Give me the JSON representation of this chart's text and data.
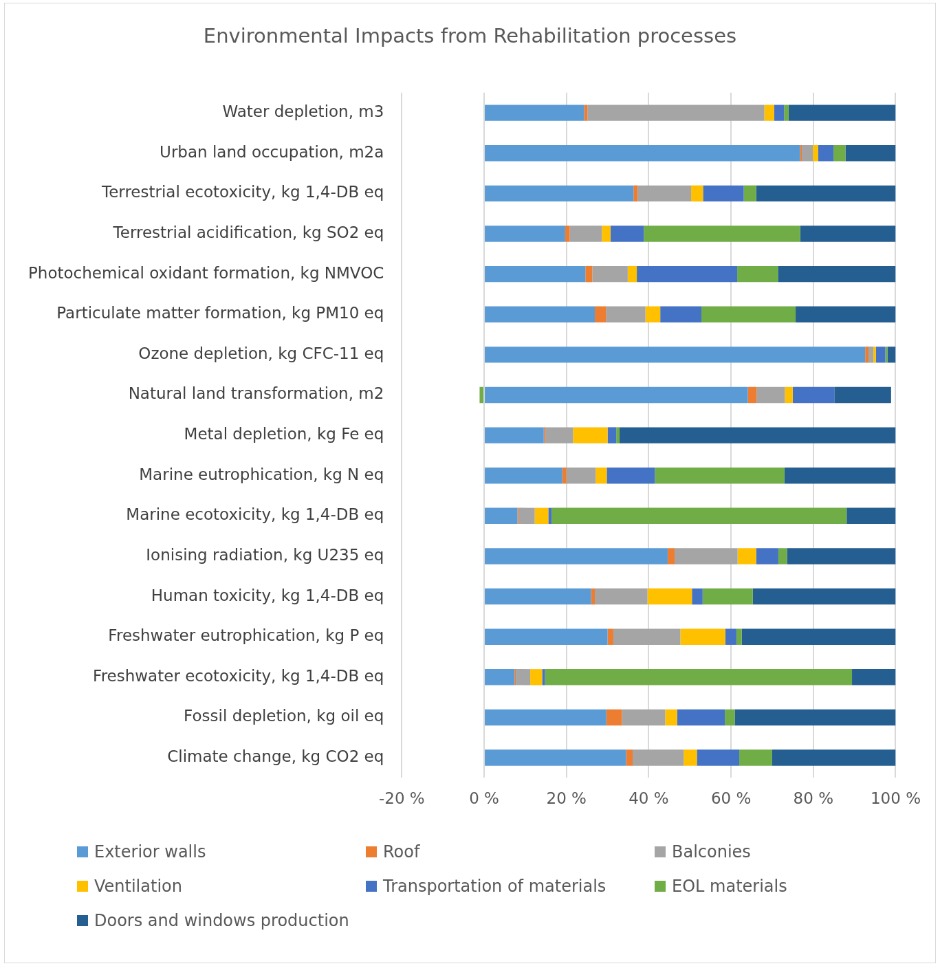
{
  "chart_data": {
    "type": "bar",
    "orientation": "horizontal",
    "stacked": true,
    "title": "Environmental Impacts from Rehabilitation processes",
    "categories": [
      "Water depletion, m3",
      "Urban land occupation, m2a",
      "Terrestrial ecotoxicity, kg 1,4-DB eq",
      "Terrestrial acidification, kg SO2 eq",
      "Photochemical oxidant formation, kg NMVOC",
      "Particulate matter formation, kg PM10 eq",
      "Ozone depletion, kg CFC-11 eq",
      "Natural land transformation, m2",
      "Metal depletion, kg Fe eq",
      "Marine eutrophication, kg N eq",
      "Marine ecotoxicity, kg 1,4-DB eq",
      "Ionising radiation, kg U235 eq",
      "Human toxicity, kg 1,4-DB eq",
      "Freshwater eutrophication, kg P eq",
      "Freshwater ecotoxicity, kg 1,4-DB eq",
      "Fossil depletion, kg oil eq",
      "Climate change, kg CO2 eq"
    ],
    "series": [
      {
        "name": "Exterior walls",
        "color": "#5b9bd5",
        "values": [
          24.3,
          76.8,
          36.3,
          19.7,
          24.6,
          26.9,
          92.6,
          64.1,
          14.5,
          19.0,
          8.1,
          44.6,
          26.0,
          30.0,
          7.4,
          29.7,
          34.5
        ]
      },
      {
        "name": "Roof",
        "color": "#ed7d31",
        "values": [
          0.8,
          0.4,
          1.0,
          1.1,
          1.7,
          2.7,
          0.8,
          2.1,
          0.3,
          1.0,
          0.3,
          1.7,
          0.9,
          1.4,
          0.3,
          3.8,
          1.6
        ]
      },
      {
        "name": "Balconies",
        "color": "#a5a5a5",
        "values": [
          43.0,
          2.7,
          13.0,
          7.8,
          8.6,
          9.6,
          1.2,
          6.9,
          6.8,
          7.1,
          3.9,
          15.3,
          12.8,
          16.3,
          3.5,
          10.5,
          12.4
        ]
      },
      {
        "name": "Ventilation",
        "color": "#ffc000",
        "values": [
          2.4,
          1.3,
          2.9,
          2.1,
          2.2,
          3.6,
          0.6,
          1.9,
          8.4,
          2.7,
          3.3,
          4.5,
          10.8,
          10.9,
          2.9,
          2.9,
          3.2
        ]
      },
      {
        "name": "Transportation of materials",
        "color": "#4472c4",
        "values": [
          2.4,
          3.7,
          9.9,
          8.1,
          24.4,
          10.0,
          2.3,
          10.1,
          2.1,
          11.7,
          0.8,
          5.4,
          2.6,
          2.7,
          0.7,
          11.6,
          10.3
        ]
      },
      {
        "name": "EOL materials",
        "color": "#70ad47",
        "values": [
          1.1,
          2.9,
          3.0,
          38.0,
          9.9,
          22.9,
          0.5,
          -1.1,
          0.8,
          31.5,
          71.7,
          2.1,
          12.2,
          1.3,
          74.6,
          2.4,
          8.0
        ]
      },
      {
        "name": "Doors and windows production",
        "color": "#255e91",
        "values": [
          26.0,
          12.2,
          33.9,
          23.2,
          28.6,
          24.3,
          2.0,
          13.8,
          67.1,
          27.0,
          11.9,
          26.4,
          34.7,
          37.4,
          10.6,
          39.1,
          30.0
        ]
      }
    ],
    "xlim": [
      -20,
      100
    ],
    "xticks": [
      {
        "value": -20,
        "label": "-20 %"
      },
      {
        "value": 0,
        "label": "0 %"
      },
      {
        "value": 20,
        "label": "20 %"
      },
      {
        "value": 40,
        "label": "40 %"
      },
      {
        "value": 60,
        "label": "60 %"
      },
      {
        "value": 80,
        "label": "80 %"
      },
      {
        "value": 100,
        "label": "100 %"
      }
    ],
    "grid": "x",
    "legend": "bottom"
  }
}
